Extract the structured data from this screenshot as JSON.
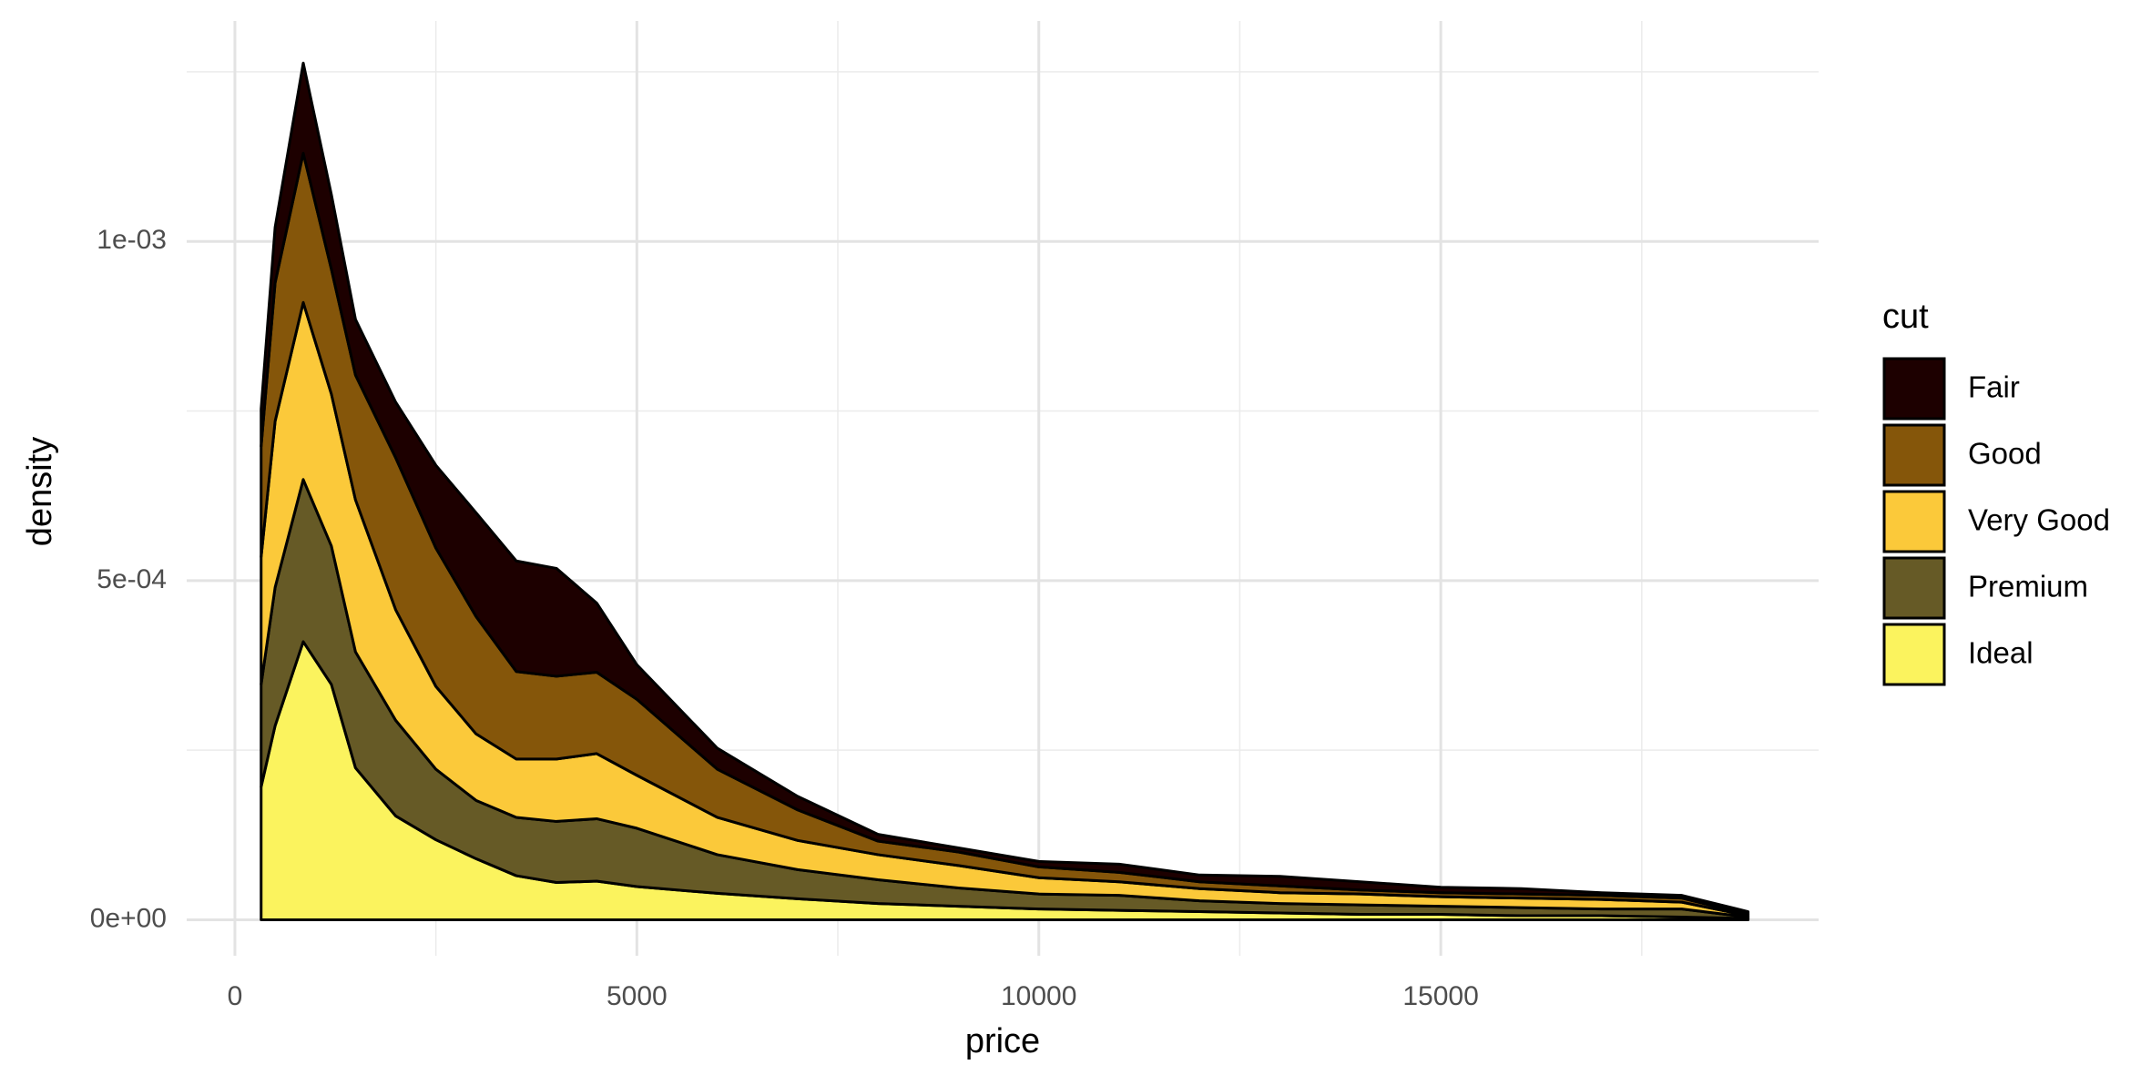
{
  "chart_data": {
    "type": "stacked_density",
    "x_label": "price",
    "y_label": "density",
    "legend_title": "cut",
    "x": [
      326,
      500,
      850,
      1200,
      1500,
      2000,
      2500,
      3000,
      3500,
      4000,
      4500,
      5000,
      6000,
      7000,
      8000,
      9000,
      10000,
      11000,
      12000,
      13000,
      14000,
      15000,
      16000,
      17000,
      18000,
      18823
    ],
    "series": [
      {
        "name": "Fair",
        "color": "#1d0000",
        "values": [
          5.5e-05,
          8.2e-05,
          0.000133,
          0.00011,
          8.2e-05,
          8.2e-05,
          0.000122,
          0.000153,
          0.000163,
          0.000159,
          0.000102,
          5.1e-05,
          3.1e-05,
          2e-05,
          1e-05,
          6e-06,
          8e-06,
          1.2e-05,
          1e-05,
          1.4e-05,
          1.2e-05,
          8e-06,
          8e-06,
          4e-06,
          4e-06,
          4e-06
        ]
      },
      {
        "name": "Good",
        "color": "#85560a",
        "values": [
          0.000163,
          0.000204,
          0.00022,
          0.000184,
          0.000184,
          0.000224,
          0.000204,
          0.000173,
          0.000129,
          0.000122,
          0.00012,
          0.000112,
          7.1e-05,
          4.5e-05,
          2e-05,
          2e-05,
          1.6e-05,
          1.4e-05,
          1e-05,
          1e-05,
          6e-06,
          6e-06,
          6e-06,
          6e-06,
          6e-06,
          2e-06
        ]
      },
      {
        "name": "Very Good",
        "color": "#fbc93a",
        "values": [
          0.000188,
          0.000245,
          0.000261,
          0.000224,
          0.000224,
          0.000163,
          0.000122,
          9.8e-05,
          8.6e-05,
          9.2e-05,
          9.6e-05,
          7.8e-05,
          5.5e-05,
          4.3e-05,
          3.7e-05,
          3.3e-05,
          2.4e-05,
          2e-05,
          1.8e-05,
          1.6e-05,
          1.6e-05,
          1.4e-05,
          1.4e-05,
          1.4e-05,
          1e-05,
          2e-06
        ]
      },
      {
        "name": "Premium",
        "color": "#665a26",
        "values": [
          0.000151,
          0.000204,
          0.000239,
          0.000204,
          0.000171,
          0.000141,
          0.000104,
          8.6e-05,
          8.6e-05,
          9e-05,
          9.2e-05,
          8.6e-05,
          5.7e-05,
          4.3e-05,
          3.5e-05,
          2.7e-05,
          2.2e-05,
          2.2e-05,
          1.6e-05,
          1.4e-05,
          1.4e-05,
          1.2e-05,
          1.2e-05,
          1e-05,
          1.2e-05,
          2e-06
        ]
      },
      {
        "name": "Ideal",
        "color": "#fbf35e",
        "values": [
          0.000196,
          0.000286,
          0.00041,
          0.000347,
          0.000224,
          0.000153,
          0.000118,
          9e-05,
          6.5e-05,
          5.5e-05,
          5.7e-05,
          4.9e-05,
          3.9e-05,
          3.1e-05,
          2.4e-05,
          2e-05,
          1.6e-05,
          1.4e-05,
          1.2e-05,
          1e-05,
          8e-06,
          8e-06,
          6e-06,
          6e-06,
          4e-06,
          2e-06
        ]
      }
    ],
    "xlim": [
      -600,
      19700
    ],
    "xticks": [
      0,
      5000,
      10000,
      15000
    ],
    "minor_xticks": [
      2500,
      7500,
      12500,
      17500
    ],
    "ylim": [
      -5.3e-05,
      0.001325
    ],
    "yticks": [
      {
        "value": 0,
        "label": "0e+00"
      },
      {
        "value": 0.0005,
        "label": "5e-04"
      },
      {
        "value": 0.001,
        "label": "1e-03"
      }
    ],
    "minor_yticks": [
      0.00025,
      0.00075,
      0.00125
    ],
    "grid": true,
    "legend_position": "right"
  }
}
